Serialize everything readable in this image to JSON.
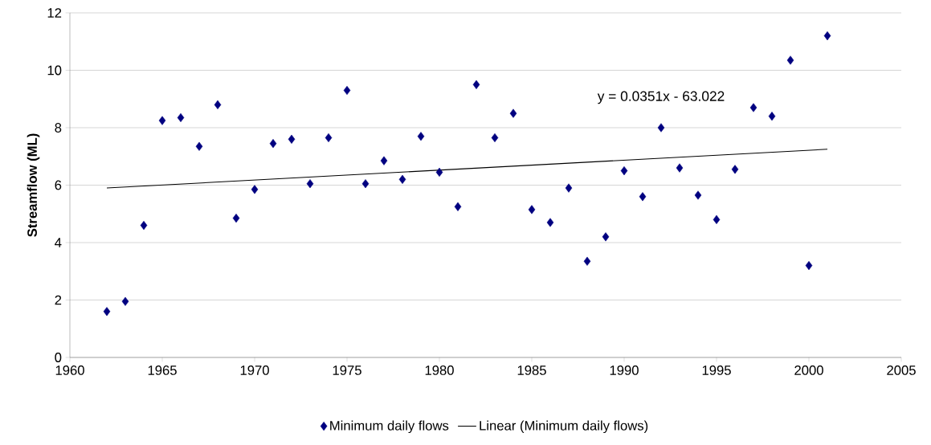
{
  "chart_data": {
    "type": "scatter",
    "ylabel": "Streamflow (ML)",
    "x": [
      1962,
      1963,
      1964,
      1965,
      1966,
      1967,
      1968,
      1969,
      1970,
      1971,
      1972,
      1973,
      1974,
      1975,
      1976,
      1977,
      1978,
      1979,
      1980,
      1981,
      1982,
      1983,
      1984,
      1985,
      1986,
      1987,
      1988,
      1989,
      1990,
      1991,
      1992,
      1993,
      1994,
      1995,
      1996,
      1997,
      1998,
      1999,
      2000,
      2001
    ],
    "series": [
      {
        "name": "Minimum daily flows",
        "color": "#000080",
        "marker": "diamond",
        "values": [
          1.6,
          1.95,
          4.6,
          8.25,
          8.35,
          7.35,
          8.8,
          4.85,
          5.85,
          7.45,
          7.6,
          6.05,
          7.65,
          9.3,
          6.05,
          6.85,
          6.2,
          7.7,
          6.45,
          5.25,
          9.5,
          7.65,
          8.5,
          5.15,
          4.7,
          5.9,
          3.35,
          4.2,
          6.5,
          5.6,
          8.0,
          6.6,
          5.65,
          4.8,
          6.55,
          8.7,
          8.4,
          10.35,
          3.2,
          11.2
        ]
      },
      {
        "name": "Linear (Minimum daily flows)",
        "type": "line",
        "color": "#000000",
        "line_style": "solid",
        "x": [
          1962,
          2001
        ],
        "values": [
          5.9,
          7.25
        ]
      }
    ],
    "annotations": [
      "y = 0.0351x - 63.022"
    ],
    "xlim": [
      1960,
      2005
    ],
    "xticks": [
      1960,
      1965,
      1970,
      1975,
      1980,
      1985,
      1990,
      1995,
      2000,
      2005
    ],
    "ylim": [
      0,
      12
    ],
    "yticks": [
      0,
      2,
      4,
      6,
      8,
      10,
      12
    ],
    "grid": "y",
    "legend": "bottom"
  }
}
